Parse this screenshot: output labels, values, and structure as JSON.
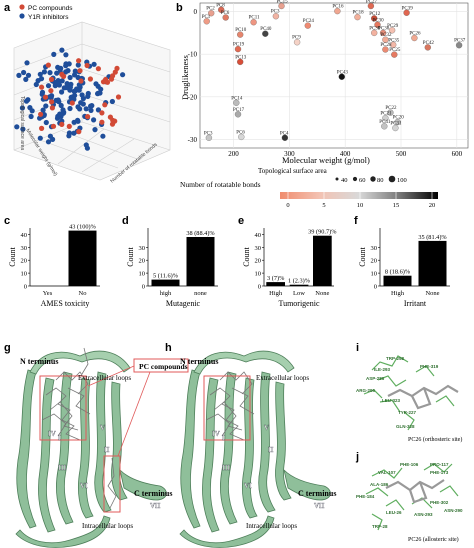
{
  "panel_labels": {
    "a": "a",
    "b": "b",
    "c": "c",
    "d": "d",
    "e": "e",
    "f": "f",
    "g": "g",
    "h": "h",
    "i": "i",
    "j": "j"
  },
  "panel_a": {
    "legend": [
      {
        "label": "PC compounds",
        "color": "#d24a36"
      },
      {
        "label": "Y1R inhibitors",
        "color": "#1f4e9a"
      }
    ],
    "axis_labels": {
      "z": "Topological surface area",
      "x": "Molecular weight (g/mol)",
      "y": "Number of rotatable bonds"
    }
  },
  "panel_b": {
    "ylabel": "Druglikeness",
    "xlabel": "Molecular weight (g/mol)",
    "size_legend_title": "Topological surface area",
    "size_legend_values": [
      "40",
      "60",
      "80",
      "100"
    ],
    "color_legend_title": "Number of rotatable bonds",
    "color_ticks": [
      "0",
      "5",
      "10",
      "15",
      "20"
    ]
  },
  "chart_data": [
    {
      "type": "scatter",
      "panel": "b",
      "xlabel": "Molecular weight (g/mol)",
      "ylabel": "Druglikeness",
      "xlim": [
        140,
        620
      ],
      "ylim": [
        -32,
        2
      ],
      "xticks": [
        200,
        300,
        400,
        500,
        600
      ],
      "yticks": [
        0,
        -10,
        -20,
        -30
      ],
      "points": [
        {
          "label": "PC2",
          "x": 160,
          "y": -0.4,
          "color": "#e8a08f"
        },
        {
          "label": "PC8",
          "x": 178,
          "y": 0.4,
          "color": "#d96a55"
        },
        {
          "label": "PC6",
          "x": 186,
          "y": -1.4,
          "color": "#e07a64"
        },
        {
          "label": "PC1",
          "x": 152,
          "y": -2.3,
          "color": "#ef9c86"
        },
        {
          "label": "PC10",
          "x": 212,
          "y": -5.4,
          "color": "#e5856d"
        },
        {
          "label": "PC11",
          "x": 236,
          "y": -2.5,
          "color": "#ee9682"
        },
        {
          "label": "PC40",
          "x": 257,
          "y": -5.2,
          "color": "#444444"
        },
        {
          "label": "PC15",
          "x": 286,
          "y": 1.3,
          "color": "#e8a08f"
        },
        {
          "label": "PC3",
          "x": 276,
          "y": -1.1,
          "color": "#f1b3a3"
        },
        {
          "label": "PC19",
          "x": 208,
          "y": -8.8,
          "color": "#e26a52"
        },
        {
          "label": "PC13",
          "x": 212,
          "y": -11.8,
          "color": "#d84e38"
        },
        {
          "label": "PC9",
          "x": 314,
          "y": -7.2,
          "color": "#f5d2c6"
        },
        {
          "label": "PC24",
          "x": 333,
          "y": -3.3,
          "color": "#ee8a72"
        },
        {
          "label": "PC16",
          "x": 386,
          "y": 0.1,
          "color": "#f0a791"
        },
        {
          "label": "PC18",
          "x": 422,
          "y": -1.3,
          "color": "#f3b09b"
        },
        {
          "label": "PC27",
          "x": 446,
          "y": 1.3,
          "color": "#e06a54"
        },
        {
          "label": "PC12",
          "x": 452,
          "y": -1.6,
          "color": "#c44a34"
        },
        {
          "label": "PC30",
          "x": 458,
          "y": -3.1,
          "color": "#e6785f"
        },
        {
          "label": "PC38",
          "x": 452,
          "y": -5.0,
          "color": "#f3b2a0"
        },
        {
          "label": "PC36",
          "x": 468,
          "y": -5.0,
          "color": "#e88f7a"
        },
        {
          "label": "PC39",
          "x": 510,
          "y": -0.3,
          "color": "#e06650"
        },
        {
          "label": "PC29",
          "x": 484,
          "y": -4.4,
          "color": "#f4c0b1"
        },
        {
          "label": "PC26",
          "x": 524,
          "y": -6.2,
          "color": "#f0a891"
        },
        {
          "label": "PC32",
          "x": 472,
          "y": -6.6,
          "color": "#f1ac97"
        },
        {
          "label": "PC35",
          "x": 486,
          "y": -7.8,
          "color": "#f3b8a8"
        },
        {
          "label": "PC28",
          "x": 472,
          "y": -8.9,
          "color": "#ea8b73"
        },
        {
          "label": "PC25",
          "x": 488,
          "y": -10.1,
          "color": "#e57a62"
        },
        {
          "label": "PC37",
          "x": 604,
          "y": -7.9,
          "color": "#888888"
        },
        {
          "label": "PC42",
          "x": 548,
          "y": -8.4,
          "color": "#d9775f"
        },
        {
          "label": "PC43",
          "x": 394,
          "y": -15.3,
          "color": "#111111"
        },
        {
          "label": "PC14",
          "x": 205,
          "y": -21.4,
          "color": "#bbbbbb"
        },
        {
          "label": "PC17",
          "x": 208,
          "y": -24.1,
          "color": "#aaaaaa"
        },
        {
          "label": "PC3",
          "x": 156,
          "y": -29.6,
          "color": "#c6c6c6"
        },
        {
          "label": "PC6",
          "x": 214,
          "y": -29.4,
          "color": "#d7d7d7"
        },
        {
          "label": "PC4",
          "x": 292,
          "y": -29.6,
          "color": "#333333"
        },
        {
          "label": "PC22",
          "x": 481,
          "y": -23.7,
          "color": "#b8b8b8"
        },
        {
          "label": "PC21",
          "x": 472,
          "y": -25.0,
          "color": "#cfcfcf"
        },
        {
          "label": "PC20",
          "x": 494,
          "y": -25.9,
          "color": "#bdbdbd"
        },
        {
          "label": "PC41",
          "x": 470,
          "y": -26.9,
          "color": "#c3c3c3"
        },
        {
          "label": "PC31",
          "x": 490,
          "y": -27.3,
          "color": "#d3d3d3"
        }
      ]
    },
    {
      "type": "bar",
      "panel": "c",
      "xlabel": "AMES toxicity",
      "ylabel": "Count",
      "ylim": [
        0,
        45
      ],
      "yticks": [
        0,
        10,
        20,
        30,
        40
      ],
      "categories": [
        "Yes",
        "No"
      ],
      "values": [
        0,
        43
      ],
      "bar_labels": [
        "",
        "43 (100)%"
      ]
    },
    {
      "type": "bar",
      "panel": "d",
      "xlabel": "Mutagenic",
      "ylabel": "Count",
      "ylim": [
        0,
        45
      ],
      "yticks": [
        0,
        10,
        20,
        30
      ],
      "categories": [
        "high",
        "none"
      ],
      "values": [
        5,
        38
      ],
      "bar_labels": [
        "5 (11.6)%",
        "38 (88.4)%"
      ]
    },
    {
      "type": "bar",
      "panel": "e",
      "xlabel": "Tumorigenic",
      "ylabel": "Count",
      "ylim": [
        0,
        45
      ],
      "yticks": [
        0,
        10,
        20,
        30,
        40
      ],
      "categories": [
        "High",
        "Low",
        "None"
      ],
      "values": [
        3,
        1,
        39
      ],
      "bar_labels": [
        "3 (7)%",
        "1 (2.3)%",
        "39 (90.7)%"
      ]
    },
    {
      "type": "bar",
      "panel": "f",
      "xlabel": "Irritant",
      "ylabel": "Count",
      "ylim": [
        0,
        45
      ],
      "yticks": [
        0,
        10,
        20,
        30
      ],
      "categories": [
        "High",
        "None"
      ],
      "values": [
        8,
        35
      ],
      "bar_labels": [
        "8 (18.6)%",
        "35 (81.4)%"
      ]
    }
  ],
  "panel_g": {
    "n_terminus": "N terminus",
    "extracellular": "Extracellular loops",
    "pc_box": "PC compounds",
    "c_terminus": "C terminus",
    "intracellular": "Intracellular loops",
    "helices": [
      "I",
      "II",
      "III",
      "IV",
      "V",
      "VI",
      "VII"
    ]
  },
  "panel_h": {
    "n_terminus": "N terminus",
    "extracellular": "Extracellular loops",
    "c_terminus": "C terminus",
    "intracellular": "Intracellular loops",
    "helices": [
      "I",
      "II",
      "III",
      "IV",
      "V",
      "VI",
      "VII"
    ]
  },
  "panel_i": {
    "caption": "PC26 (orthosteric site)",
    "residues": [
      "TRP-258",
      "ILE-293",
      "ASP-286",
      "ARG-296",
      "LEU-323",
      "TYR-227",
      "PHE-319",
      "GLN-328"
    ]
  },
  "panel_j": {
    "caption": "PC26 (allosteric site)",
    "residues": [
      "PHE-106",
      "VAL-107",
      "PRO-117",
      "PHE-173",
      "ALA-186",
      "PHE-184",
      "LEU-26",
      "ASN-293",
      "ASN-290",
      "PHE-302",
      "TRP-28"
    ]
  }
}
